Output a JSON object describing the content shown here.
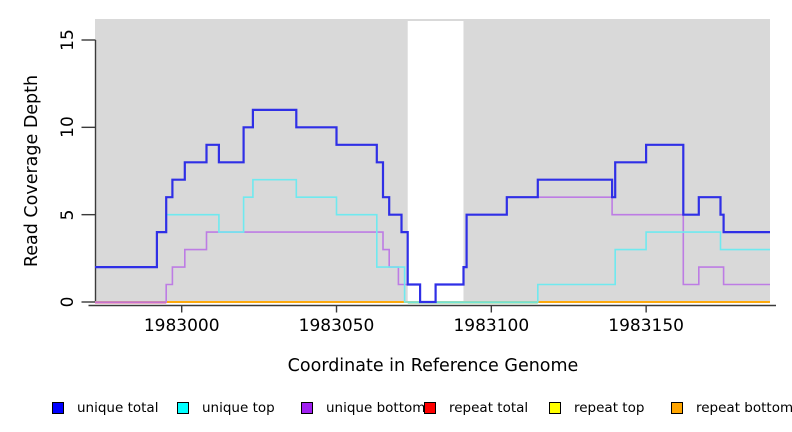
{
  "chart_data": {
    "type": "line",
    "subtype": "step-coverage",
    "title": "",
    "xlabel": "Coordinate in Reference Genome",
    "ylabel": "Read Coverage Depth",
    "xlim": [
      1982972,
      1983190
    ],
    "ylim": [
      0,
      15
    ],
    "x_ticks": [
      1983000,
      1983050,
      1983100,
      1983150
    ],
    "y_ticks": [
      0,
      5,
      10,
      15
    ],
    "grid": false,
    "panel_bg": "#d9d9d9",
    "gap_band": {
      "from": 1983073,
      "to": 1983091,
      "color": "#ffffff"
    },
    "legend_position": "bottom",
    "series": [
      {
        "name": "unique total",
        "color": "#0000ff",
        "draw_color": "#2f2fe6",
        "width": 2.2,
        "steps": [
          [
            1982972,
            2
          ],
          [
            1982992,
            4
          ],
          [
            1982995,
            6
          ],
          [
            1982997,
            7
          ],
          [
            1983001,
            8
          ],
          [
            1983008,
            9
          ],
          [
            1983012,
            8
          ],
          [
            1983020,
            10
          ],
          [
            1983023,
            11
          ],
          [
            1983037,
            10
          ],
          [
            1983050,
            9
          ],
          [
            1983063,
            8
          ],
          [
            1983065,
            6
          ],
          [
            1983067,
            5
          ],
          [
            1983071,
            4
          ],
          [
            1983073,
            1
          ],
          [
            1983077,
            0
          ],
          [
            1983082,
            1
          ],
          [
            1983091,
            2
          ],
          [
            1983092,
            5
          ],
          [
            1983105,
            6
          ],
          [
            1983115,
            7
          ],
          [
            1983139,
            6
          ],
          [
            1983140,
            8
          ],
          [
            1983150,
            9
          ],
          [
            1983162,
            5
          ],
          [
            1983167,
            6
          ],
          [
            1983174,
            5
          ],
          [
            1983175,
            4
          ],
          [
            1983190,
            4
          ]
        ]
      },
      {
        "name": "unique top",
        "color": "#00ffff",
        "draw_color": "#6fe9ef",
        "width": 1.6,
        "steps": [
          [
            1982972,
            2
          ],
          [
            1982992,
            4
          ],
          [
            1982995,
            5
          ],
          [
            1983012,
            4
          ],
          [
            1983020,
            6
          ],
          [
            1983023,
            7
          ],
          [
            1983037,
            6
          ],
          [
            1983050,
            5
          ],
          [
            1983063,
            2
          ],
          [
            1983072,
            0
          ],
          [
            1983115,
            1
          ],
          [
            1983140,
            3
          ],
          [
            1983150,
            4
          ],
          [
            1983174,
            3
          ],
          [
            1983190,
            3
          ]
        ]
      },
      {
        "name": "unique bottom",
        "color": "#a020f0",
        "draw_color": "#bd7ce4",
        "width": 1.6,
        "steps": [
          [
            1982972,
            0
          ],
          [
            1982995,
            1
          ],
          [
            1982997,
            2
          ],
          [
            1983001,
            3
          ],
          [
            1983008,
            4
          ],
          [
            1983065,
            3
          ],
          [
            1983067,
            2
          ],
          [
            1983070,
            1
          ],
          [
            1983077,
            0
          ],
          [
            1983082,
            1
          ],
          [
            1983091,
            2
          ],
          [
            1983092,
            5
          ],
          [
            1983105,
            6
          ],
          [
            1983139,
            5
          ],
          [
            1983162,
            1
          ],
          [
            1983167,
            2
          ],
          [
            1983175,
            1
          ],
          [
            1983190,
            1
          ]
        ]
      },
      {
        "name": "repeat total",
        "color": "#ff0000",
        "draw_color": "#ff0000",
        "width": 1.4,
        "steps": [
          [
            1982972,
            0
          ],
          [
            1983190,
            0
          ]
        ]
      },
      {
        "name": "repeat top",
        "color": "#ffff00",
        "draw_color": "#ffff00",
        "width": 1.4,
        "steps": [
          [
            1982972,
            0
          ],
          [
            1983190,
            0
          ]
        ]
      },
      {
        "name": "repeat bottom",
        "color": "#ffa500",
        "draw_color": "#ffa500",
        "width": 1.6,
        "steps": [
          [
            1982972,
            0
          ],
          [
            1983190,
            0
          ]
        ]
      }
    ],
    "baseline_overlays": [
      {
        "from": 1982972,
        "to": 1982995,
        "color": "#d6548c"
      },
      {
        "from": 1983073,
        "to": 1983115,
        "color": "#7ccf87"
      }
    ]
  },
  "legend": {
    "items": [
      {
        "label": "unique total",
        "color": "#0000ff"
      },
      {
        "label": "unique top",
        "color": "#00ffff"
      },
      {
        "label": "unique bottom",
        "color": "#a020f0"
      },
      {
        "label": "repeat total",
        "color": "#ff0000"
      },
      {
        "label": "repeat top",
        "color": "#ffff00"
      },
      {
        "label": "repeat bottom",
        "color": "#ffa500"
      }
    ]
  }
}
